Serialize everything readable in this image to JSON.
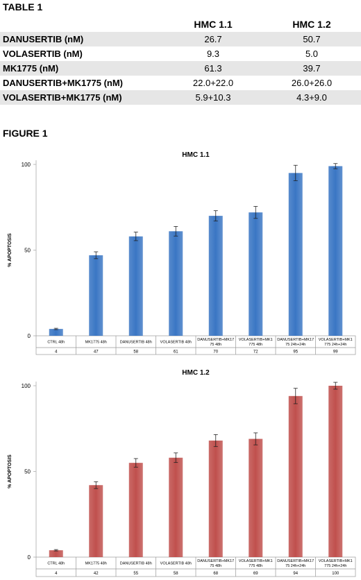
{
  "table": {
    "heading": "TABLE 1",
    "columns": [
      "HMC 1.1",
      "HMC 1.2"
    ],
    "rows": [
      {
        "label": "DANUSERTIB (nM)",
        "values": [
          "26.7",
          "50.7"
        ]
      },
      {
        "label": "VOLASERTIB (nM)",
        "values": [
          "9.3",
          "5.0"
        ]
      },
      {
        "label": "MK1775 (nM)",
        "values": [
          "61.3",
          "39.7"
        ]
      },
      {
        "label": "DANUSERTIB+MK1775 (nM)",
        "values": [
          "22.0+22.0",
          "26.0+26.0"
        ]
      },
      {
        "label": "VOLASERTIB+MK1775 (nM)",
        "values": [
          "5.9+10.3",
          "4.3+9.0"
        ]
      }
    ]
  },
  "figure": {
    "heading": "FIGURE 1"
  },
  "colors": {
    "hmc11_bar": "#3a76c4",
    "hmc12_bar": "#c0504d",
    "table_shade": "#e6e6e6"
  },
  "chart_data": [
    {
      "type": "bar",
      "title": "HMC 1.1",
      "ylabel": "% APOPTOSIS",
      "xlabel": "",
      "ylim": [
        0,
        100
      ],
      "yticks": [
        0,
        50,
        100
      ],
      "categories": [
        [
          "CTRL 48h"
        ],
        [
          "MK1775  48h"
        ],
        [
          "DANUSERTIB  48h"
        ],
        [
          "VOLASERTIB 48h"
        ],
        [
          "DANUSERTIB+MK17",
          "75 48h"
        ],
        [
          "VOLASERTIB+MK1",
          "775 48h"
        ],
        [
          "DANUSERTIB+MK17",
          "75 24h+24h"
        ],
        [
          "VOLASERTIB+MK1",
          "775 24h+24h"
        ]
      ],
      "values": [
        4,
        47,
        58,
        61,
        70,
        72,
        95,
        99
      ],
      "value_labels": [
        "4",
        "47",
        "58",
        "61",
        "70",
        "72",
        "95",
        "99"
      ],
      "errors": [
        0.4,
        2,
        2.5,
        2.8,
        3,
        3.5,
        4.5,
        1.5
      ],
      "grid": false
    },
    {
      "type": "bar",
      "title": "HMC 1.2",
      "ylabel": "% APOPTOSIS",
      "xlabel": "",
      "ylim": [
        0,
        100
      ],
      "yticks": [
        0,
        50,
        100
      ],
      "categories": [
        [
          "CTRL 48h"
        ],
        [
          "MK1775  48h"
        ],
        [
          "DANUSERTIB  48h"
        ],
        [
          "VOLASERTIB 48h"
        ],
        [
          "DANUSERTIB+MK17",
          "75 48h"
        ],
        [
          "VOLASERTIB+MK1",
          "775 48h"
        ],
        [
          "DANUSERTIB+MK17",
          "75 24h+24h"
        ],
        [
          "VOLASERTIB+MK1",
          "775 24h+24h"
        ]
      ],
      "values": [
        4,
        42,
        55,
        58,
        68,
        69,
        94,
        100
      ],
      "value_labels": [
        "4",
        "42",
        "55",
        "58",
        "68",
        "69",
        "94",
        "100"
      ],
      "errors": [
        0.4,
        2,
        2.5,
        2.8,
        3.5,
        3.5,
        4.5,
        2
      ],
      "grid": false
    }
  ]
}
